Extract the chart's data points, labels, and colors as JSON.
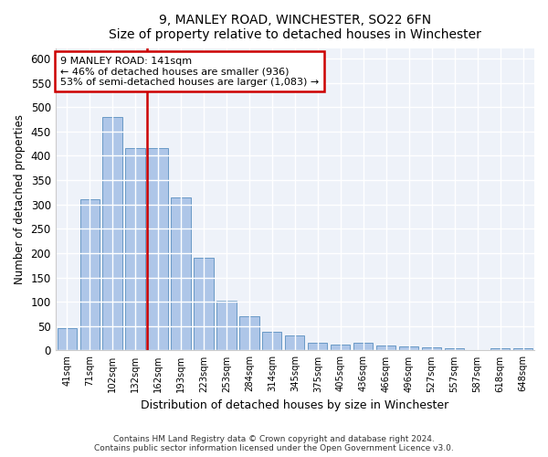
{
  "title": "9, MANLEY ROAD, WINCHESTER, SO22 6FN",
  "subtitle": "Size of property relative to detached houses in Winchester",
  "xlabel": "Distribution of detached houses by size in Winchester",
  "ylabel": "Number of detached properties",
  "footer_line1": "Contains HM Land Registry data © Crown copyright and database right 2024.",
  "footer_line2": "Contains public sector information licensed under the Open Government Licence v3.0.",
  "annotation_line1": "9 MANLEY ROAD: 141sqm",
  "annotation_line2": "← 46% of detached houses are smaller (936)",
  "annotation_line3": "53% of semi-detached houses are larger (1,083) →",
  "bar_color": "#aec6e8",
  "bar_edge_color": "#5a8fc0",
  "redline_color": "#cc0000",
  "annotation_box_edgecolor": "#cc0000",
  "background_color": "#eef2f9",
  "categories": [
    "41sqm",
    "71sqm",
    "102sqm",
    "132sqm",
    "162sqm",
    "193sqm",
    "223sqm",
    "253sqm",
    "284sqm",
    "314sqm",
    "345sqm",
    "375sqm",
    "405sqm",
    "436sqm",
    "466sqm",
    "496sqm",
    "527sqm",
    "557sqm",
    "587sqm",
    "618sqm",
    "648sqm"
  ],
  "values": [
    46,
    311,
    480,
    415,
    415,
    315,
    190,
    103,
    70,
    38,
    31,
    15,
    13,
    15,
    11,
    8,
    6,
    4,
    0,
    5,
    5
  ],
  "redline_bar_index": 3,
  "ylim": [
    0,
    620
  ],
  "yticks": [
    0,
    50,
    100,
    150,
    200,
    250,
    300,
    350,
    400,
    450,
    500,
    550,
    600
  ]
}
